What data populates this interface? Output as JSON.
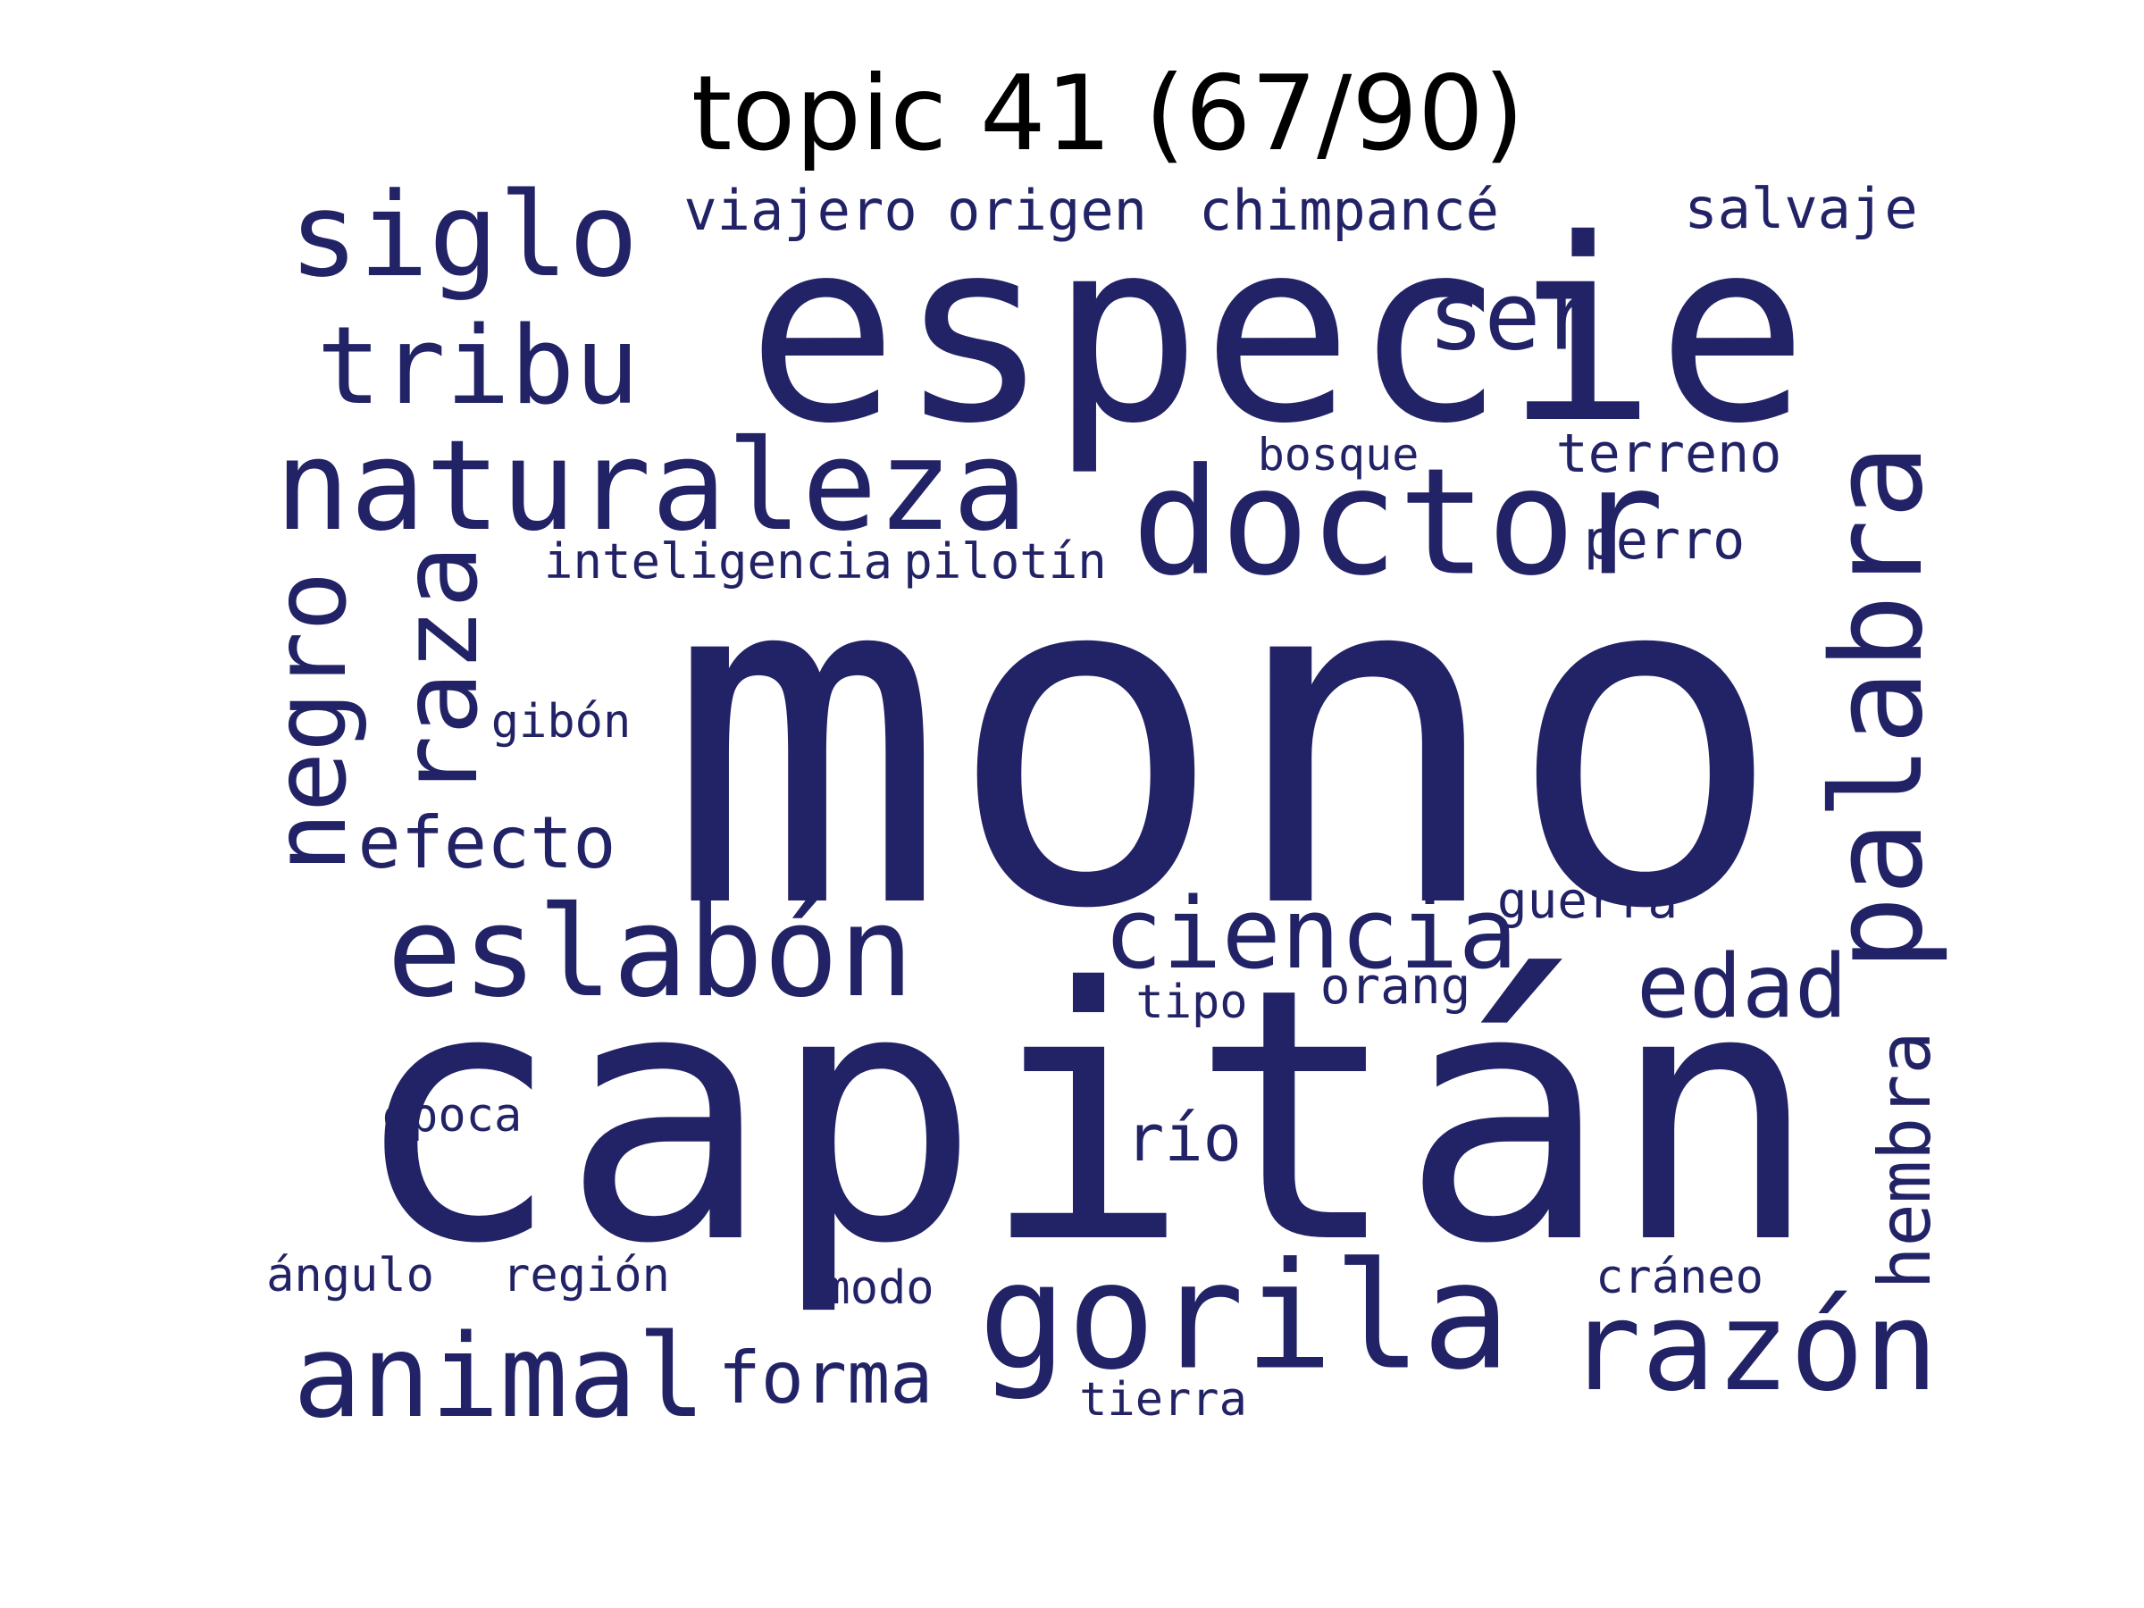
{
  "title": "topic 41 (67/90)",
  "colors": {
    "word": "#222266",
    "title": "#000000",
    "background": "#ffffff"
  },
  "words": [
    {
      "text": "mono"
    },
    {
      "text": "capitán"
    },
    {
      "text": "especie"
    },
    {
      "text": "gorila"
    },
    {
      "text": "doctor"
    },
    {
      "text": "naturaleza"
    },
    {
      "text": "siglo"
    },
    {
      "text": "eslabón"
    },
    {
      "text": "animal"
    },
    {
      "text": "palabra"
    },
    {
      "text": "tribu"
    },
    {
      "text": "razón"
    },
    {
      "text": "raza"
    },
    {
      "text": "negro"
    },
    {
      "text": "ciencia"
    },
    {
      "text": "ser"
    },
    {
      "text": "edad"
    },
    {
      "text": "hembra"
    },
    {
      "text": "efecto"
    },
    {
      "text": "forma"
    },
    {
      "text": "río"
    },
    {
      "text": "chimpancé"
    },
    {
      "text": "viajero"
    },
    {
      "text": "origen"
    },
    {
      "text": "salvaje"
    },
    {
      "text": "terreno"
    },
    {
      "text": "perro"
    },
    {
      "text": "inteligencia"
    },
    {
      "text": "pilotín"
    },
    {
      "text": "guerra"
    },
    {
      "text": "orang"
    },
    {
      "text": "gibón"
    },
    {
      "text": "tipo"
    },
    {
      "text": "época"
    },
    {
      "text": "ángulo"
    },
    {
      "text": "región"
    },
    {
      "text": "modo"
    },
    {
      "text": "cráneo"
    },
    {
      "text": "tierra"
    },
    {
      "text": "bosque"
    }
  ]
}
